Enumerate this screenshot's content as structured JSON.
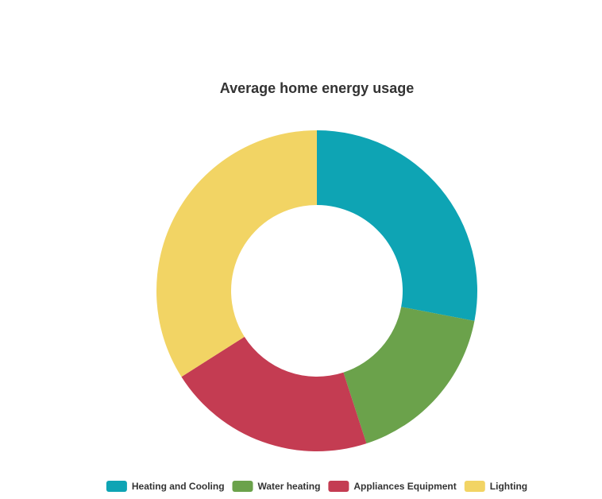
{
  "chart_data": {
    "type": "pie",
    "variant": "donut",
    "title": "Average home energy usage",
    "legend_position": "bottom",
    "categories": [
      "Heating and Cooling",
      "Water heating",
      "Appliances Equipment",
      "Lighting"
    ],
    "values": [
      28,
      17,
      21,
      34
    ],
    "colors": [
      "#0ea4b4",
      "#6ba24b",
      "#c43c52",
      "#f2d464"
    ]
  }
}
